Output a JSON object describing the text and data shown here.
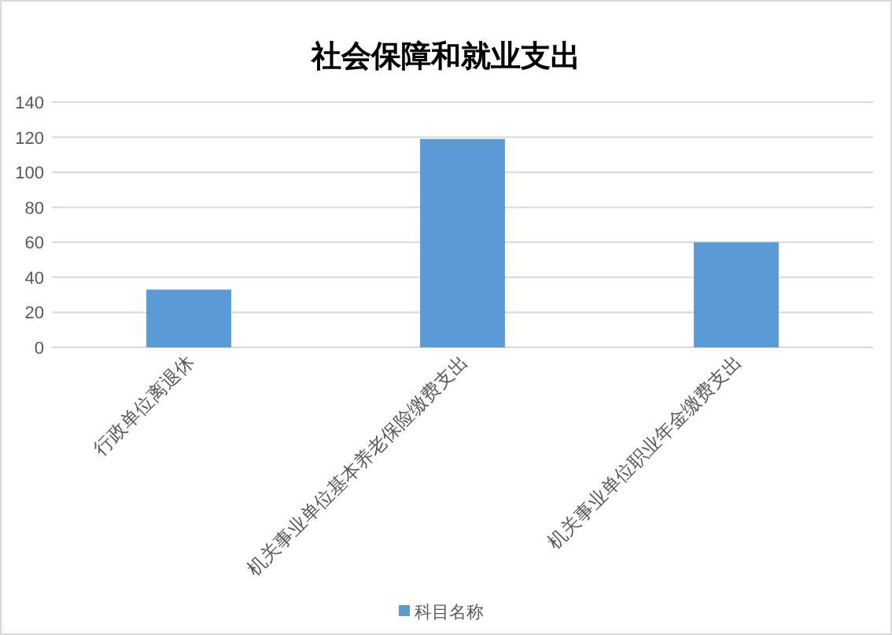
{
  "chart_data": {
    "type": "bar",
    "title": "社会保障和就业支出",
    "categories": [
      "行政单位离退休",
      "机关事业单位基本养老保险缴费支出",
      "机关事业单位职业年金缴费支出"
    ],
    "series": [
      {
        "name": "科目名称",
        "color": "#5b9bd5",
        "values": [
          33,
          119,
          60
        ]
      }
    ],
    "ylim": [
      0,
      140
    ],
    "yticks": [
      0,
      20,
      40,
      60,
      80,
      100,
      120,
      140
    ],
    "grid": "y",
    "legend": "bottom"
  }
}
